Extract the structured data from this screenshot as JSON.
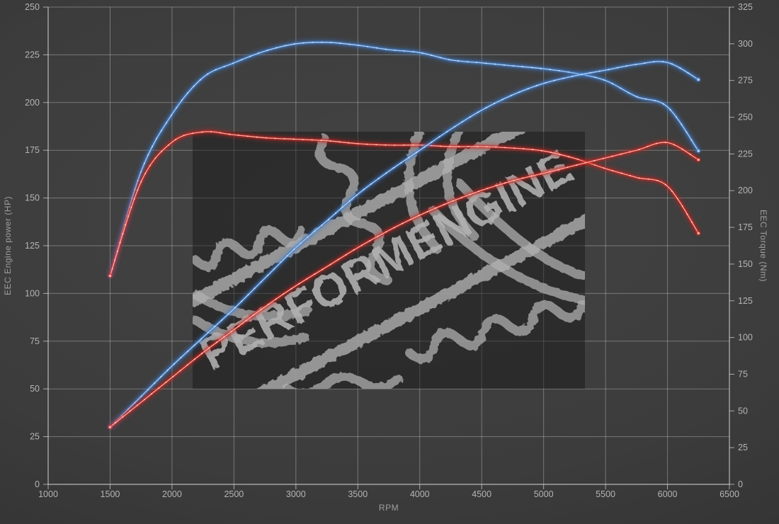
{
  "chart_data": {
    "type": "line",
    "title": "",
    "legend": "none",
    "grid": "on",
    "x_axis": {
      "label": "RPM",
      "min": 1000,
      "max": 6500,
      "ticks": [
        1000,
        1500,
        2000,
        2500,
        3000,
        3500,
        4000,
        4500,
        5000,
        5500,
        6000,
        6500
      ]
    },
    "y_axis_left": {
      "label": "EEC Engine power (HP)",
      "min": 0,
      "max": 250,
      "ticks": [
        0,
        25,
        50,
        75,
        100,
        125,
        150,
        175,
        200,
        225,
        250
      ]
    },
    "y_axis_right": {
      "label": "EEC Torque (Nm)",
      "min": 0,
      "max": 325,
      "ticks": [
        0,
        25,
        50,
        75,
        100,
        125,
        150,
        175,
        200,
        225,
        250,
        275,
        300,
        325
      ]
    },
    "rpm": [
      1500,
      1750,
      2000,
      2250,
      2500,
      2750,
      3000,
      3250,
      3500,
      3750,
      4000,
      4250,
      4500,
      4750,
      5000,
      5250,
      5500,
      5750,
      6000,
      6250
    ],
    "series": [
      {
        "id": "torque-blue",
        "axis": "right",
        "unit": "Nm",
        "color": "#3f7fd2",
        "core": "#b9d5f3",
        "values": [
          142,
          213,
          252,
          277,
          287,
          295,
          300,
          301,
          299,
          296,
          294,
          289,
          287,
          285,
          283,
          280,
          275,
          264,
          257,
          227
        ]
      },
      {
        "id": "torque-red",
        "axis": "right",
        "unit": "Nm",
        "color": "#cc2822",
        "core": "#ffb4a8",
        "values": [
          142,
          206,
          233,
          240,
          238,
          236,
          235,
          234,
          232,
          231,
          231,
          230,
          230,
          229,
          227,
          222,
          215,
          209,
          203,
          171
        ]
      },
      {
        "id": "power-blue",
        "axis": "left",
        "unit": "HP",
        "color": "#3f7fd2",
        "core": "#b9d5f3",
        "values": [
          30,
          46,
          62,
          77,
          92,
          108,
          124,
          138,
          152,
          164,
          175,
          186,
          196,
          204,
          210,
          214,
          217,
          220,
          221,
          212
        ]
      },
      {
        "id": "power-red",
        "axis": "left",
        "unit": "HP",
        "color": "#cc2822",
        "core": "#ffb4a8",
        "values": [
          30,
          43,
          56,
          69,
          81,
          93,
          104,
          114,
          124,
          133,
          141,
          148,
          154,
          159,
          163,
          167,
          171,
          175,
          179,
          170
        ]
      }
    ],
    "watermark": {
      "text": "PERFORMENGINE"
    },
    "colors": {
      "background": "#3c3c3c",
      "grid": "#d0d0d0",
      "tick_text": "#b4b4b4"
    }
  }
}
